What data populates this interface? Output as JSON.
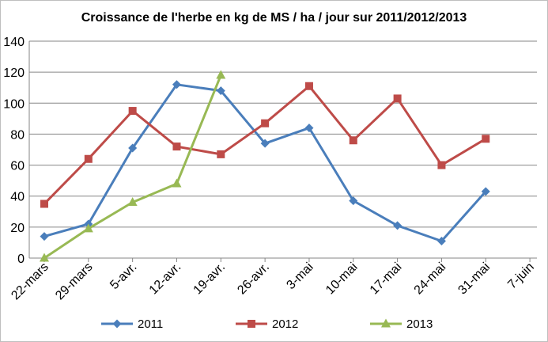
{
  "chart_data": {
    "type": "line",
    "title": "Croissance de l'herbe en kg de MS / ha / jour sur 2011/2012/2013",
    "xlabel": "",
    "ylabel": "",
    "categories": [
      "22-mars",
      "29-mars",
      "5-avr.",
      "12-avr.",
      "19-avr.",
      "26-avr.",
      "3-mai",
      "10-mai",
      "17-mai",
      "24-mai",
      "31-mai",
      "7-juin"
    ],
    "ylim": [
      0,
      140
    ],
    "yticks": [
      "0",
      "20",
      "40",
      "60",
      "80",
      "100",
      "120",
      "140"
    ],
    "grid": "horizontal",
    "legend": "bottom",
    "series": [
      {
        "name": "2011",
        "color": "#4a7ebb",
        "marker": "diamond",
        "values": [
          14,
          22,
          71,
          112,
          108,
          74,
          84,
          37,
          21,
          11,
          43,
          null
        ]
      },
      {
        "name": "2012",
        "color": "#be4b48",
        "marker": "square",
        "values": [
          35,
          64,
          95,
          72,
          67,
          87,
          111,
          76,
          103,
          60,
          77,
          null
        ]
      },
      {
        "name": "2013",
        "color": "#98b954",
        "marker": "triangle",
        "values": [
          0,
          19,
          36,
          48,
          118,
          null,
          null,
          null,
          null,
          null,
          null,
          null
        ]
      }
    ]
  }
}
